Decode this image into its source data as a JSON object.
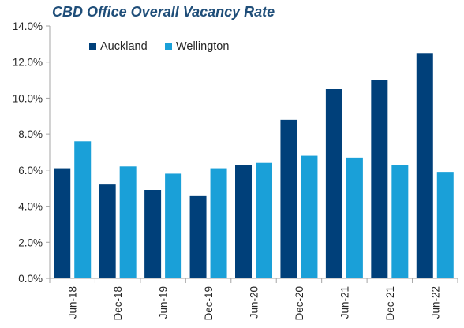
{
  "chart_data": {
    "type": "bar",
    "title": "CBD Office Overall Vacancy Rate",
    "categories": [
      "Jun-18",
      "Dec-18",
      "Jun-19",
      "Dec-19",
      "Jun-20",
      "Dec-20",
      "Jun-21",
      "Dec-21",
      "Jun-22"
    ],
    "series": [
      {
        "name": "Auckland",
        "color": "#00407a",
        "values": [
          6.1,
          5.2,
          4.9,
          4.6,
          6.3,
          8.8,
          10.5,
          11.0,
          12.5
        ]
      },
      {
        "name": "Wellington",
        "color": "#1aa0d8",
        "values": [
          7.6,
          6.2,
          5.8,
          6.1,
          6.4,
          6.8,
          6.7,
          6.3,
          5.9
        ]
      }
    ],
    "xlabel": "",
    "ylabel": "",
    "ylim": [
      0,
      14
    ],
    "yticks": [
      "0.0%",
      "2.0%",
      "4.0%",
      "6.0%",
      "8.0%",
      "10.0%",
      "12.0%",
      "14.0%"
    ],
    "grid": false,
    "legend_position": "top-left"
  }
}
